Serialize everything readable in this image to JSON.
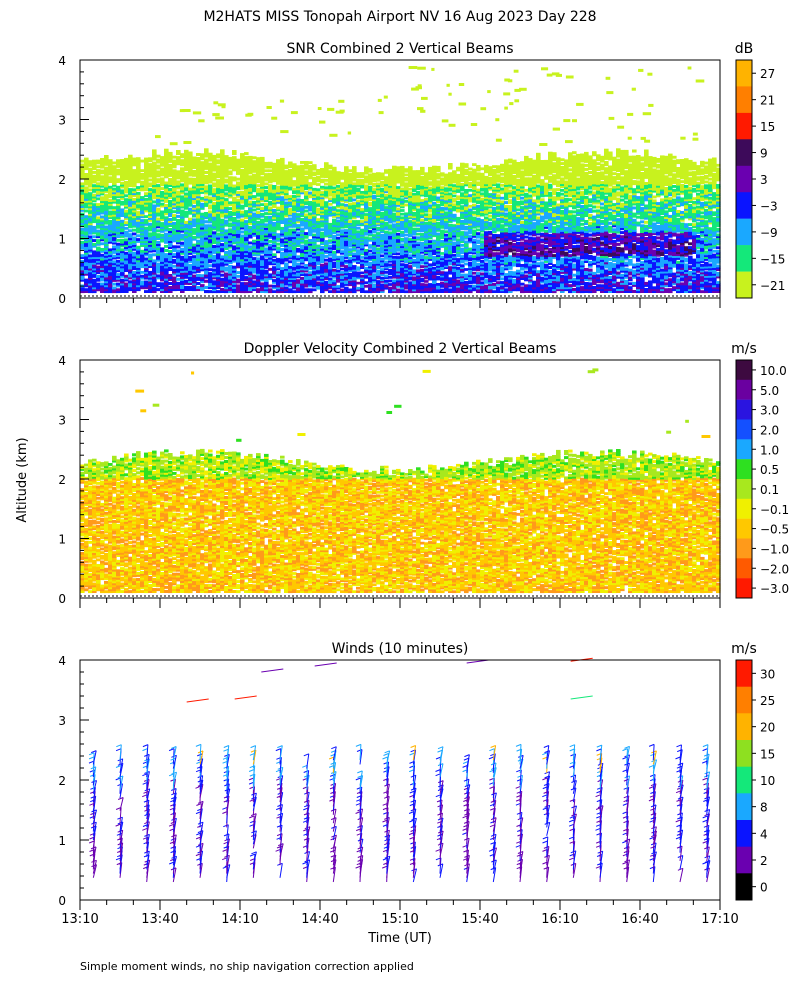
{
  "title": "M2HATS MISS Tonopah Airport NV  16 Aug 2023 Day 228",
  "ylabel": "Altitude (km)",
  "xlabel": "Time (UT)",
  "footnote": "Simple moment winds, no ship navigation correction applied",
  "chart_data": [
    {
      "type": "heatmap",
      "title": "SNR Combined 2 Vertical Beams",
      "xlim_minutes": [
        0,
        240
      ],
      "ylim": [
        0,
        4
      ],
      "yticks": [
        "0",
        "1",
        "2",
        "3",
        "4"
      ],
      "colorbar": {
        "unit": "dB",
        "labels": [
          "27",
          "21",
          "15",
          "9",
          "3",
          "−3",
          "−9",
          "−15",
          "−21"
        ],
        "colors": [
          "#ffb300",
          "#ff7f00",
          "#ff1a00",
          "#3d0a5a",
          "#6a00b0",
          "#0a14ff",
          "#1aa8ff",
          "#14e87a",
          "#c8f21e"
        ]
      },
      "layers": {
        "signal_top_km": 2.3,
        "enhanced_layer_km": [
          0.7,
          1.1
        ],
        "enhanced_time_min": [
          150,
          230
        ],
        "sparse_echo_km": [
          3.0,
          3.9
        ]
      }
    },
    {
      "type": "heatmap",
      "title": "Doppler Velocity Combined 2 Vertical Beams",
      "xlim_minutes": [
        0,
        240
      ],
      "ylim": [
        0,
        4
      ],
      "yticks": [
        "0",
        "1",
        "2",
        "3",
        "4"
      ],
      "colorbar": {
        "unit": "m/s",
        "labels": [
          "10.0",
          "5.0",
          "3.0",
          "2.0",
          "1.0",
          "0.5",
          "0.1",
          "−0.1",
          "−0.5",
          "−1.0",
          "−2.0",
          "−3.0"
        ],
        "colors": [
          "#3d0a40",
          "#6a00a0",
          "#2a14e0",
          "#1450ff",
          "#1aa8ff",
          "#2ee020",
          "#a8e81e",
          "#f0f000",
          "#ffc800",
          "#ff9a1a",
          "#ff5a00",
          "#ff1a00"
        ]
      },
      "layers": {
        "signal_top_km": 2.3,
        "dominant_range": "-0.5 to -1.0"
      }
    },
    {
      "type": "wind_barbs",
      "title": "Winds (10 minutes)",
      "xlim_minutes": [
        0,
        240
      ],
      "ylim": [
        0,
        4
      ],
      "yticks": [
        "0",
        "1",
        "2",
        "3",
        "4"
      ],
      "colorbar": {
        "unit": "m/s",
        "labels": [
          "30",
          "25",
          "20",
          "15",
          "10",
          "8",
          "4",
          "2",
          "0"
        ],
        "colors": [
          "#ff1a00",
          "#ff7f00",
          "#ffb300",
          "#8ee020",
          "#14e87a",
          "#1aa8ff",
          "#0a14ff",
          "#6a00b0",
          "#000000"
        ]
      },
      "profile_interval_min": 10,
      "profile_top_km": 2.4
    }
  ],
  "xticks": [
    "13:10",
    "13:40",
    "14:10",
    "14:40",
    "15:10",
    "15:40",
    "16:10",
    "16:40",
    "17:10"
  ]
}
